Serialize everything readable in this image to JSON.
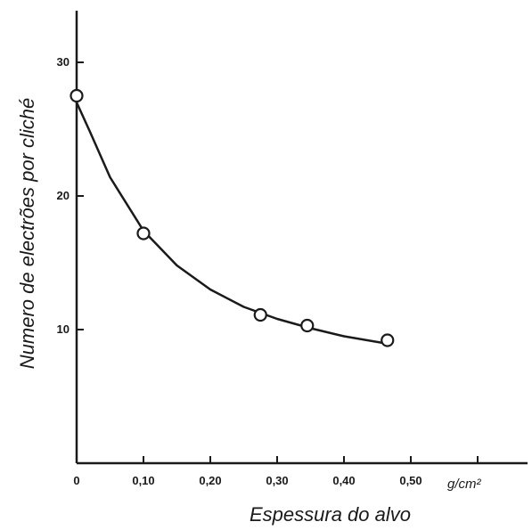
{
  "chart_data": {
    "type": "scatter",
    "title": "",
    "xlabel": "Espessura do alvo",
    "ylabel": "Numero de electrões por cliché",
    "x_unit": "g/cm²",
    "xlim": [
      0,
      0.6
    ],
    "ylim": [
      0,
      35
    ],
    "x_ticks": [
      0,
      0.1,
      0.2,
      0.3,
      0.4,
      0.5,
      0.6
    ],
    "x_tick_labels": [
      "0",
      "0,10",
      "0,20",
      "0,30",
      "0,40",
      "0,50",
      ""
    ],
    "y_ticks": [
      10,
      20,
      30
    ],
    "y_tick_labels": [
      "10",
      "20",
      "30"
    ],
    "grid": false,
    "series": [
      {
        "points": [
          {
            "x": 0.0,
            "y": 27.5
          },
          {
            "x": 0.1,
            "y": 17.2
          },
          {
            "x": 0.275,
            "y": 11.1
          },
          {
            "x": 0.345,
            "y": 10.3
          },
          {
            "x": 0.465,
            "y": 9.2
          }
        ],
        "fit_curve": [
          {
            "x": 0.0,
            "y": 27.0
          },
          {
            "x": 0.02,
            "y": 24.8
          },
          {
            "x": 0.05,
            "y": 21.4
          },
          {
            "x": 0.1,
            "y": 17.4
          },
          {
            "x": 0.15,
            "y": 14.8
          },
          {
            "x": 0.2,
            "y": 13.0
          },
          {
            "x": 0.25,
            "y": 11.7
          },
          {
            "x": 0.3,
            "y": 10.8
          },
          {
            "x": 0.35,
            "y": 10.1
          },
          {
            "x": 0.4,
            "y": 9.5
          },
          {
            "x": 0.47,
            "y": 8.9
          }
        ]
      }
    ]
  }
}
